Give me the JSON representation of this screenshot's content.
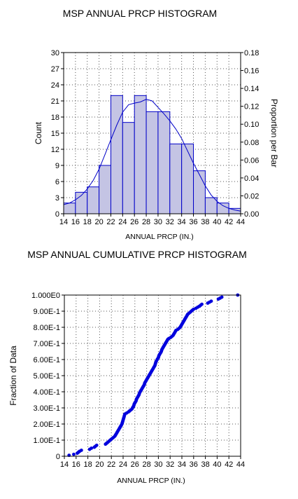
{
  "chart_data": [
    {
      "type": "bar",
      "title": "MSP ANNUAL PRCP HISTOGRAM",
      "xlabel": "ANNUAL PRCP (IN.)",
      "ylabel": "Count",
      "y2label": "Proportion per Bar",
      "xlim": [
        14,
        44
      ],
      "ylim": [
        0,
        30
      ],
      "y2lim": [
        0,
        0.18
      ],
      "xticks": [
        14,
        16,
        18,
        20,
        22,
        24,
        26,
        28,
        30,
        32,
        34,
        36,
        38,
        40,
        42,
        44
      ],
      "yticks": [
        0,
        3,
        6,
        9,
        12,
        15,
        18,
        21,
        24,
        27,
        30
      ],
      "y2ticks": [
        "0.00",
        "0.02",
        "0.04",
        "0.06",
        "0.08",
        "0.10",
        "0.12",
        "0.14",
        "0.16",
        "0.18"
      ],
      "bin_edges": [
        14,
        16,
        18,
        20,
        22,
        24,
        26,
        28,
        30,
        32,
        34,
        36,
        38,
        40,
        42,
        44
      ],
      "counts": [
        2,
        4,
        5,
        9,
        22,
        17,
        22,
        19,
        19,
        13,
        13,
        8,
        3,
        2,
        1
      ],
      "density_curve": {
        "x": [
          14,
          15,
          16,
          17,
          18,
          19,
          20,
          21,
          22,
          23,
          24,
          25,
          26,
          27,
          28,
          29,
          30,
          31,
          32,
          33,
          34,
          35,
          36,
          37,
          38,
          39,
          40,
          41,
          42,
          43,
          44
        ],
        "y": [
          1.7,
          2.0,
          2.6,
          3.4,
          4.6,
          6.2,
          8.3,
          11.0,
          13.8,
          16.5,
          18.9,
          20.3,
          20.6,
          20.8,
          21.3,
          21.0,
          19.8,
          18.6,
          17.3,
          15.8,
          14.0,
          11.7,
          9.4,
          7.3,
          5.2,
          3.5,
          2.3,
          1.5,
          1.0,
          0.7,
          0.5
        ]
      },
      "grid": true,
      "bar_color": "#c4c4e4",
      "edge_color": "#0000c8"
    },
    {
      "type": "scatter",
      "title": "MSP ANNUAL CUMULATIVE PRCP HISTOGRAM",
      "xlabel": "ANNUAL PRCP (IN.)",
      "ylabel": "Fraction of Data",
      "xlim": [
        14,
        44
      ],
      "ylim": [
        0,
        1
      ],
      "xticks": [
        14,
        16,
        18,
        20,
        22,
        24,
        26,
        28,
        30,
        32,
        34,
        36,
        38,
        40,
        42,
        44
      ],
      "yticks": [
        "0",
        "1.00E-1",
        "2.00E-1",
        "3.00E-1",
        "4.00E-1",
        "5.00E-1",
        "6.00E-1",
        "7.00E-1",
        "8.00E-1",
        "9.00E-1",
        "1.000E0"
      ],
      "points": [
        [
          14.8,
          0.006
        ],
        [
          15.6,
          0.012
        ],
        [
          16.2,
          0.019
        ],
        [
          16.4,
          0.025
        ],
        [
          16.6,
          0.031
        ],
        [
          16.9,
          0.037
        ],
        [
          18.3,
          0.043
        ],
        [
          18.6,
          0.05
        ],
        [
          19.1,
          0.056
        ],
        [
          19.3,
          0.062
        ],
        [
          19.5,
          0.068
        ],
        [
          21.0,
          0.075
        ],
        [
          21.2,
          0.081
        ],
        [
          21.4,
          0.087
        ],
        [
          21.6,
          0.093
        ],
        [
          21.8,
          0.1
        ],
        [
          22.0,
          0.106
        ],
        [
          22.2,
          0.112
        ],
        [
          22.4,
          0.118
        ],
        [
          22.6,
          0.125
        ],
        [
          22.7,
          0.131
        ],
        [
          22.8,
          0.137
        ],
        [
          22.9,
          0.143
        ],
        [
          23.0,
          0.15
        ],
        [
          23.1,
          0.156
        ],
        [
          23.2,
          0.162
        ],
        [
          23.3,
          0.168
        ],
        [
          23.4,
          0.175
        ],
        [
          23.5,
          0.181
        ],
        [
          23.6,
          0.187
        ],
        [
          23.7,
          0.193
        ],
        [
          23.8,
          0.2
        ],
        [
          23.85,
          0.206
        ],
        [
          23.9,
          0.212
        ],
        [
          23.95,
          0.218
        ],
        [
          24.0,
          0.225
        ],
        [
          24.05,
          0.231
        ],
        [
          24.1,
          0.237
        ],
        [
          24.15,
          0.243
        ],
        [
          24.2,
          0.25
        ],
        [
          24.25,
          0.256
        ],
        [
          24.3,
          0.262
        ],
        [
          24.6,
          0.268
        ],
        [
          24.9,
          0.275
        ],
        [
          25.1,
          0.281
        ],
        [
          25.3,
          0.287
        ],
        [
          25.5,
          0.293
        ],
        [
          25.6,
          0.3
        ],
        [
          25.7,
          0.306
        ],
        [
          25.8,
          0.312
        ],
        [
          25.85,
          0.318
        ],
        [
          25.9,
          0.325
        ],
        [
          26.0,
          0.331
        ],
        [
          26.1,
          0.337
        ],
        [
          26.2,
          0.343
        ],
        [
          26.25,
          0.35
        ],
        [
          26.3,
          0.356
        ],
        [
          26.4,
          0.362
        ],
        [
          26.5,
          0.368
        ],
        [
          26.6,
          0.375
        ],
        [
          26.7,
          0.381
        ],
        [
          26.75,
          0.387
        ],
        [
          26.8,
          0.393
        ],
        [
          26.9,
          0.4
        ],
        [
          27.0,
          0.406
        ],
        [
          27.1,
          0.412
        ],
        [
          27.2,
          0.418
        ],
        [
          27.3,
          0.425
        ],
        [
          27.4,
          0.431
        ],
        [
          27.5,
          0.437
        ],
        [
          27.6,
          0.443
        ],
        [
          27.65,
          0.45
        ],
        [
          27.7,
          0.456
        ],
        [
          27.8,
          0.462
        ],
        [
          27.9,
          0.468
        ],
        [
          28.0,
          0.475
        ],
        [
          28.1,
          0.481
        ],
        [
          28.2,
          0.487
        ],
        [
          28.3,
          0.493
        ],
        [
          28.4,
          0.5
        ],
        [
          28.5,
          0.506
        ],
        [
          28.6,
          0.512
        ],
        [
          28.7,
          0.518
        ],
        [
          28.8,
          0.525
        ],
        [
          28.9,
          0.531
        ],
        [
          29.0,
          0.537
        ],
        [
          29.1,
          0.543
        ],
        [
          29.2,
          0.55
        ],
        [
          29.3,
          0.556
        ],
        [
          29.4,
          0.562
        ],
        [
          29.45,
          0.568
        ],
        [
          29.5,
          0.575
        ],
        [
          29.55,
          0.581
        ],
        [
          29.6,
          0.587
        ],
        [
          29.7,
          0.593
        ],
        [
          29.8,
          0.6
        ],
        [
          29.9,
          0.606
        ],
        [
          30.0,
          0.612
        ],
        [
          30.05,
          0.618
        ],
        [
          30.1,
          0.625
        ],
        [
          30.2,
          0.631
        ],
        [
          30.3,
          0.637
        ],
        [
          30.4,
          0.643
        ],
        [
          30.5,
          0.65
        ],
        [
          30.55,
          0.656
        ],
        [
          30.6,
          0.662
        ],
        [
          30.7,
          0.668
        ],
        [
          30.8,
          0.675
        ],
        [
          30.9,
          0.681
        ],
        [
          31.0,
          0.687
        ],
        [
          31.1,
          0.693
        ],
        [
          31.2,
          0.7
        ],
        [
          31.3,
          0.706
        ],
        [
          31.4,
          0.712
        ],
        [
          31.5,
          0.718
        ],
        [
          31.6,
          0.725
        ],
        [
          31.8,
          0.731
        ],
        [
          32.1,
          0.737
        ],
        [
          32.3,
          0.743
        ],
        [
          32.5,
          0.75
        ],
        [
          32.6,
          0.756
        ],
        [
          32.7,
          0.762
        ],
        [
          32.8,
          0.768
        ],
        [
          32.9,
          0.775
        ],
        [
          33.0,
          0.781
        ],
        [
          33.3,
          0.787
        ],
        [
          33.5,
          0.793
        ],
        [
          33.7,
          0.8
        ],
        [
          33.8,
          0.806
        ],
        [
          33.9,
          0.812
        ],
        [
          34.0,
          0.818
        ],
        [
          34.1,
          0.825
        ],
        [
          34.2,
          0.831
        ],
        [
          34.3,
          0.837
        ],
        [
          34.4,
          0.843
        ],
        [
          34.5,
          0.85
        ],
        [
          34.6,
          0.856
        ],
        [
          34.7,
          0.862
        ],
        [
          34.8,
          0.868
        ],
        [
          34.9,
          0.875
        ],
        [
          35.0,
          0.881
        ],
        [
          35.2,
          0.887
        ],
        [
          35.4,
          0.893
        ],
        [
          35.6,
          0.9
        ],
        [
          35.8,
          0.906
        ],
        [
          36.0,
          0.912
        ],
        [
          36.4,
          0.918
        ],
        [
          36.7,
          0.925
        ],
        [
          37.0,
          0.931
        ],
        [
          37.2,
          0.937
        ],
        [
          37.4,
          0.943
        ],
        [
          38.4,
          0.95
        ],
        [
          38.7,
          0.956
        ],
        [
          39.0,
          0.962
        ],
        [
          40.2,
          0.975
        ],
        [
          40.5,
          0.981
        ],
        [
          40.8,
          0.987
        ],
        [
          43.5,
          1.0
        ]
      ],
      "grid": true,
      "point_color": "#0000dd"
    }
  ]
}
